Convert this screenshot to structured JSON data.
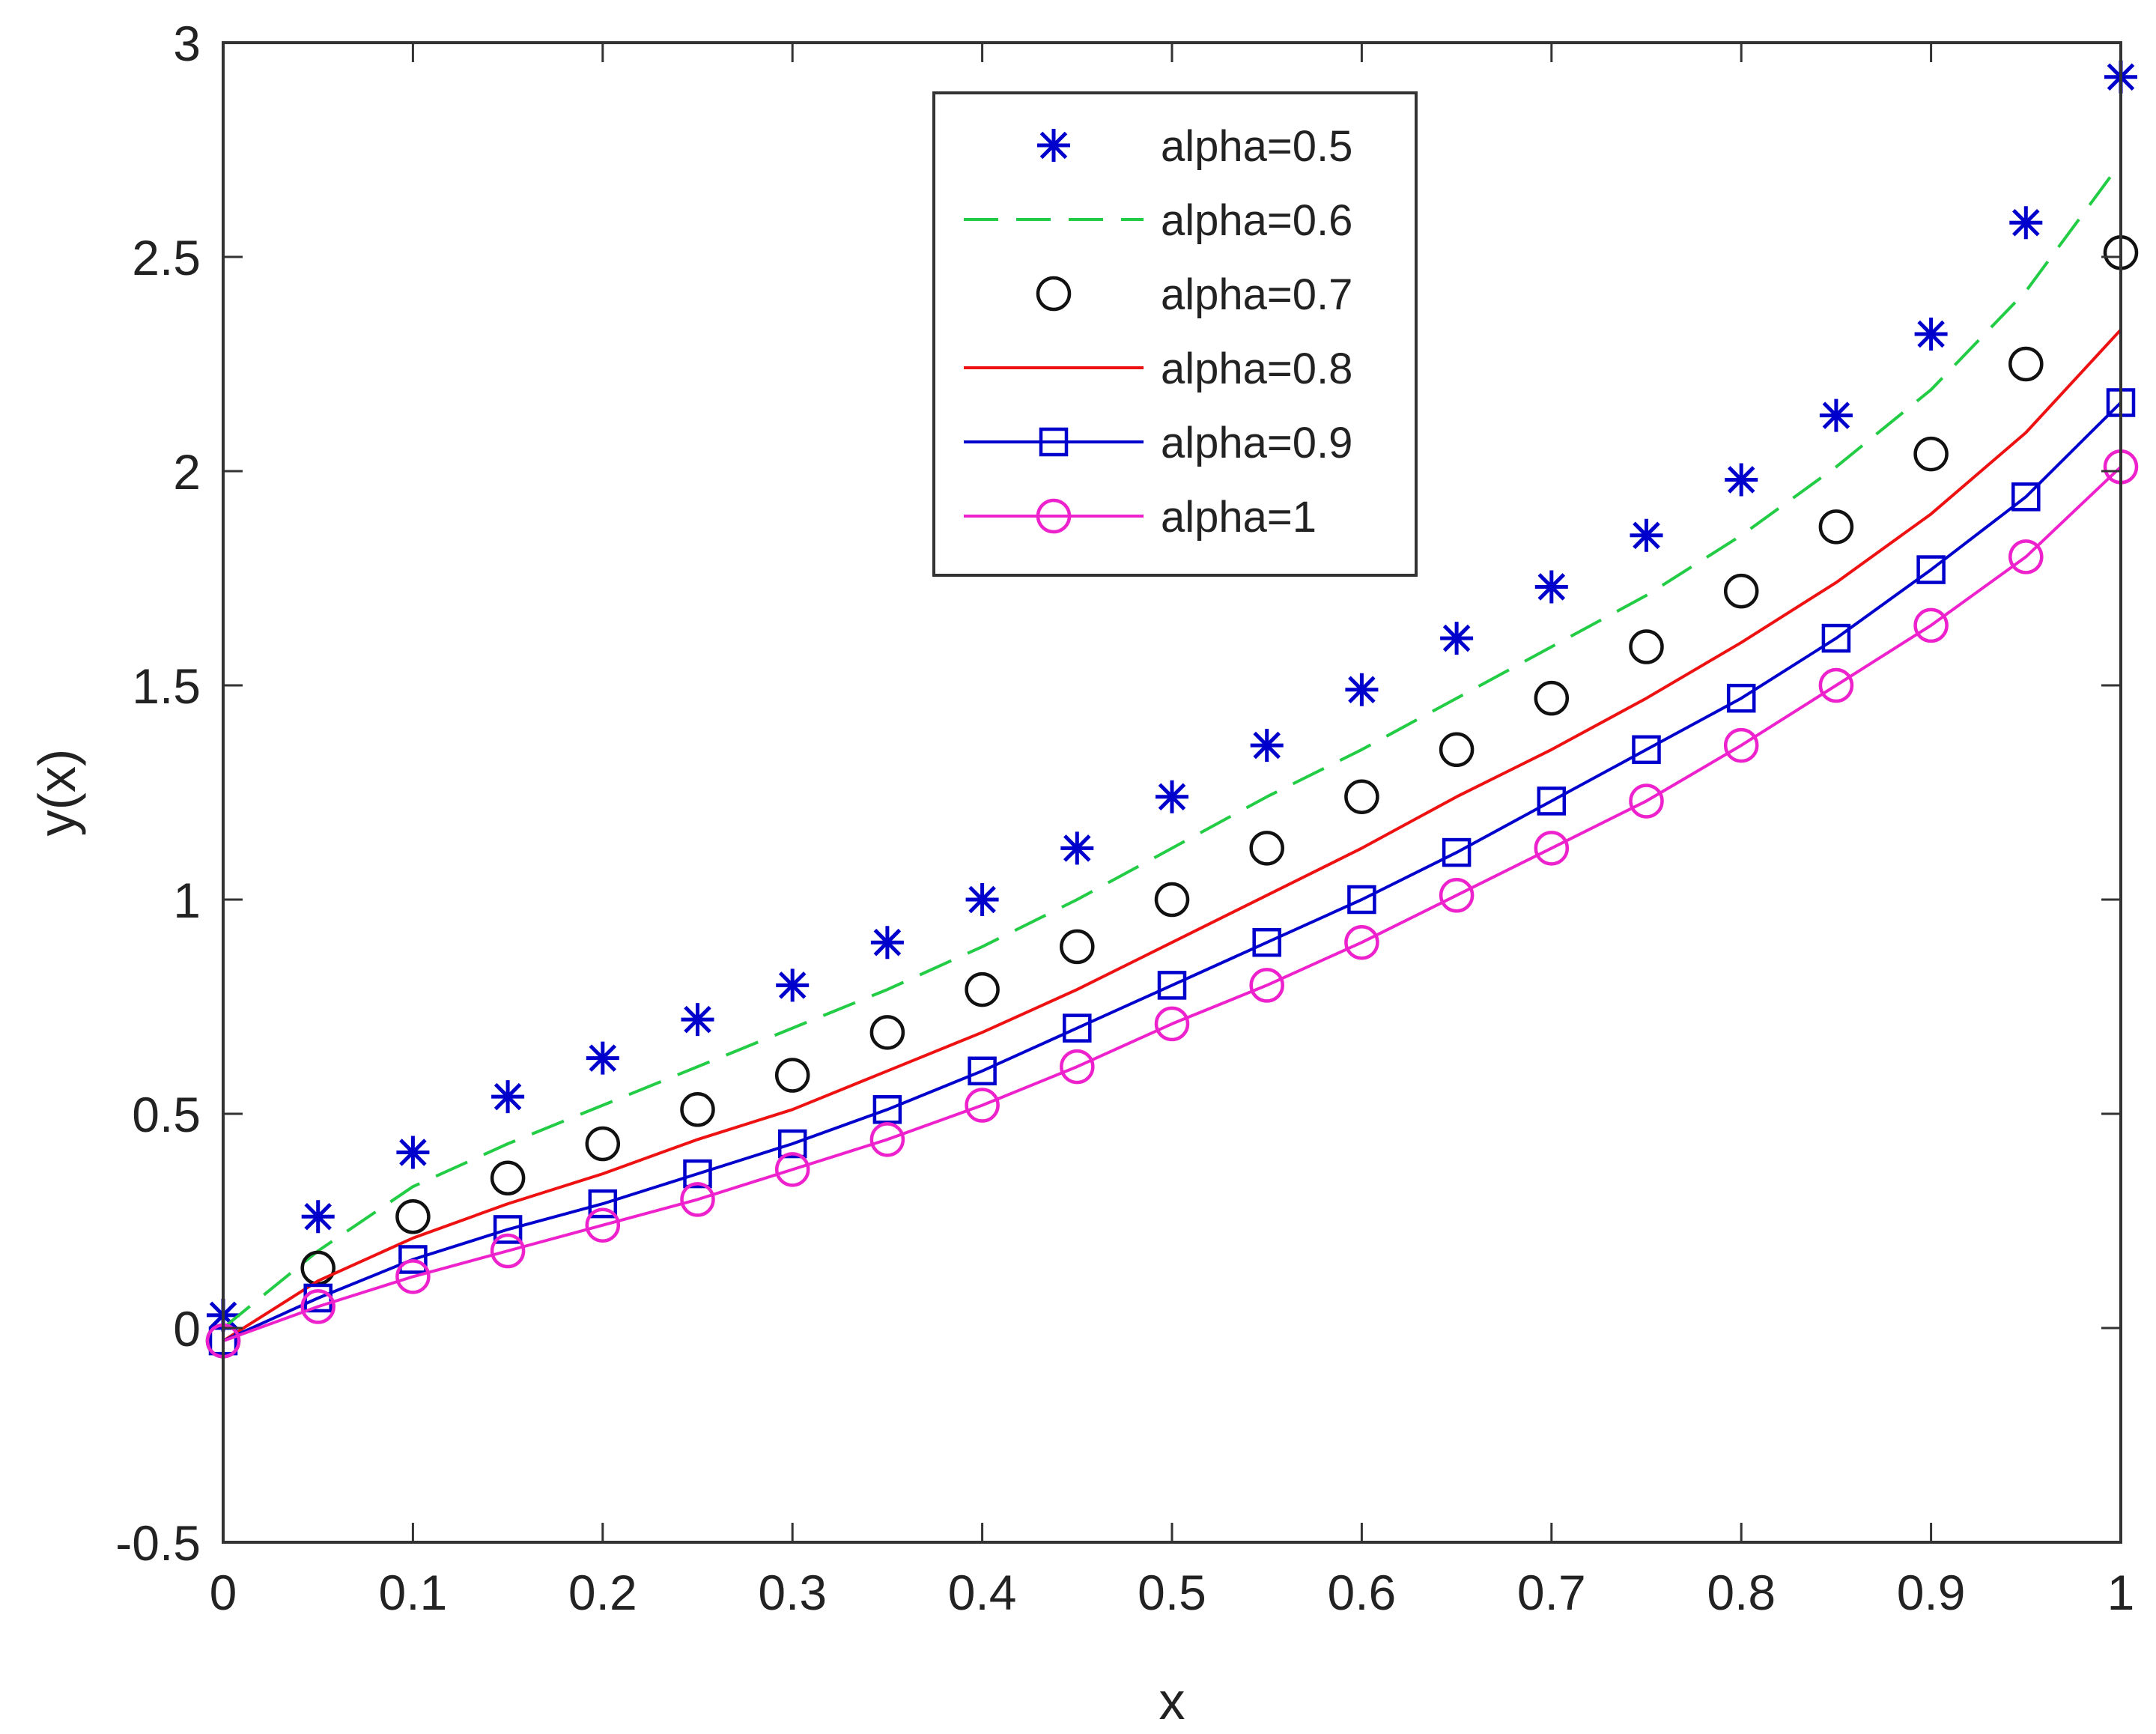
{
  "chart_data": {
    "type": "line",
    "title": "",
    "xlabel": "x",
    "ylabel": "y(x)",
    "xlim": [
      0,
      1
    ],
    "ylim": [
      -0.5,
      3
    ],
    "xticks": [
      0,
      0.1,
      0.2,
      0.3,
      0.4,
      0.5,
      0.6,
      0.7,
      0.8,
      0.9,
      1
    ],
    "yticks": [
      -0.5,
      0,
      0.5,
      1,
      1.5,
      2,
      2.5,
      3
    ],
    "xtick_labels": [
      "0",
      "0.1",
      "0.2",
      "0.3",
      "0.4",
      "0.5",
      "0.6",
      "0.7",
      "0.8",
      "0.9",
      "1"
    ],
    "ytick_labels": [
      "-0.5",
      "0",
      "0.5",
      "1",
      "1.5",
      "2",
      "2.5",
      "3"
    ],
    "grid": false,
    "legend_position": "top-center",
    "x": [
      0,
      0.05,
      0.1,
      0.15,
      0.2,
      0.25,
      0.3,
      0.35,
      0.4,
      0.45,
      0.5,
      0.55,
      0.6,
      0.65,
      0.7,
      0.75,
      0.8,
      0.85,
      0.9,
      0.95,
      1
    ],
    "series": [
      {
        "name": "alpha=0.5",
        "style": "markers",
        "marker": "star",
        "color": "#0000cc",
        "values": [
          0.03,
          0.26,
          0.41,
          0.54,
          0.63,
          0.72,
          0.8,
          0.9,
          1.0,
          1.12,
          1.24,
          1.36,
          1.49,
          1.61,
          1.73,
          1.85,
          1.98,
          2.13,
          2.32,
          2.58,
          2.92
        ]
      },
      {
        "name": "alpha=0.6",
        "style": "dashed",
        "marker": "none",
        "color": "#22cc44",
        "values": [
          0.0,
          0.18,
          0.33,
          0.43,
          0.52,
          0.61,
          0.7,
          0.79,
          0.89,
          1.0,
          1.12,
          1.24,
          1.35,
          1.47,
          1.59,
          1.71,
          1.85,
          2.01,
          2.19,
          2.42,
          2.72
        ]
      },
      {
        "name": "alpha=0.7",
        "style": "markers",
        "marker": "circle",
        "color": "#111111",
        "values": [
          -0.03,
          0.14,
          0.26,
          0.35,
          0.43,
          0.51,
          0.59,
          0.69,
          0.79,
          0.89,
          1.0,
          1.12,
          1.24,
          1.35,
          1.47,
          1.59,
          1.72,
          1.87,
          2.04,
          2.25,
          2.51
        ]
      },
      {
        "name": "alpha=0.8",
        "style": "solid",
        "marker": "none",
        "color": "#ee1111",
        "values": [
          -0.03,
          0.11,
          0.21,
          0.29,
          0.36,
          0.44,
          0.51,
          0.6,
          0.69,
          0.79,
          0.9,
          1.01,
          1.12,
          1.24,
          1.35,
          1.47,
          1.6,
          1.74,
          1.9,
          2.09,
          2.33
        ]
      },
      {
        "name": "alpha=0.9",
        "style": "solid",
        "marker": "square",
        "color": "#0000cc",
        "values": [
          -0.03,
          0.07,
          0.16,
          0.23,
          0.29,
          0.36,
          0.43,
          0.51,
          0.6,
          0.7,
          0.8,
          0.9,
          1.0,
          1.11,
          1.23,
          1.35,
          1.47,
          1.61,
          1.77,
          1.94,
          2.16
        ]
      },
      {
        "name": "alpha=1",
        "style": "solid",
        "marker": "circle",
        "color": "#ee22cc",
        "values": [
          -0.03,
          0.05,
          0.12,
          0.18,
          0.24,
          0.3,
          0.37,
          0.44,
          0.52,
          0.61,
          0.71,
          0.8,
          0.9,
          1.01,
          1.12,
          1.23,
          1.36,
          1.5,
          1.64,
          1.8,
          2.01
        ]
      }
    ]
  }
}
